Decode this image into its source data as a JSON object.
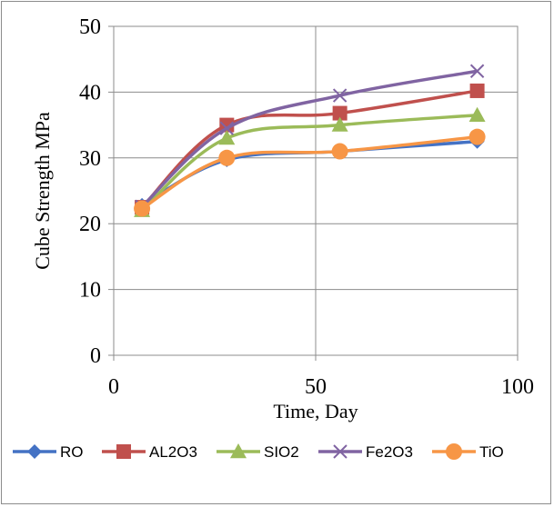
{
  "chart_data": {
    "type": "line",
    "xlabel": "Time, Day",
    "ylabel": "Cube Strength MPa",
    "xlim": [
      0,
      100
    ],
    "ylim": [
      0,
      50
    ],
    "xticks": [
      "0",
      "50",
      "100"
    ],
    "yticks": [
      "0",
      "10",
      "20",
      "30",
      "40",
      "50"
    ],
    "grid": "major gridlines",
    "legend_position": "bottom",
    "x": [
      7,
      28,
      56,
      90
    ],
    "series": [
      {
        "name": "RO",
        "color": "#4472C4",
        "marker": "diamond",
        "values": [
          22.8,
          29.7,
          31.0,
          32.5
        ]
      },
      {
        "name": "AL2O3",
        "color": "#C0504D",
        "marker": "square",
        "values": [
          22.5,
          35.0,
          36.8,
          40.2
        ]
      },
      {
        "name": "SIO2",
        "color": "#9BBB59",
        "marker": "triangle",
        "values": [
          22.0,
          33.0,
          35.0,
          36.5
        ]
      },
      {
        "name": "Fe2O3",
        "color": "#8064A2",
        "marker": "x",
        "values": [
          22.6,
          34.5,
          39.5,
          43.2
        ]
      },
      {
        "name": "TiO",
        "color": "#F79646",
        "marker": "circle",
        "values": [
          22.3,
          30.0,
          31.0,
          33.2
        ]
      }
    ]
  }
}
